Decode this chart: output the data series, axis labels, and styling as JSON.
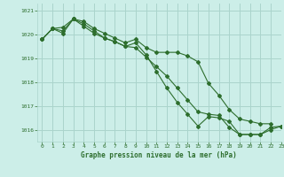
{
  "title": "Graphe pression niveau de la mer (hPa)",
  "background_color": "#cceee8",
  "grid_color": "#aad4cc",
  "line_color": "#2d6e2d",
  "xlim": [
    -0.5,
    23
  ],
  "ylim": [
    1015.5,
    1021.3
  ],
  "yticks": [
    1016,
    1017,
    1018,
    1019,
    1020,
    1021
  ],
  "xticks": [
    0,
    1,
    2,
    3,
    4,
    5,
    6,
    7,
    8,
    9,
    10,
    11,
    12,
    13,
    14,
    15,
    16,
    17,
    18,
    19,
    20,
    21,
    22,
    23
  ],
  "series": [
    [
      1019.8,
      1020.25,
      1020.3,
      1020.65,
      1020.55,
      1020.25,
      1020.05,
      1019.85,
      1019.65,
      1019.8,
      1019.45,
      1019.25,
      1019.25,
      1019.25,
      1019.1,
      1018.85,
      1017.95,
      1017.45,
      1016.85,
      1016.45,
      1016.35,
      1016.25,
      1016.25,
      null
    ],
    [
      1019.8,
      1020.25,
      1020.15,
      1020.65,
      1020.35,
      1020.05,
      1019.85,
      1019.7,
      1019.5,
      1019.65,
      1019.15,
      1018.45,
      1017.75,
      1017.15,
      1016.65,
      1016.15,
      1016.55,
      1016.5,
      1016.35,
      1015.8,
      1015.8,
      1015.8,
      1016.0,
      1016.15
    ],
    [
      1019.8,
      1020.25,
      1020.05,
      1020.65,
      1020.45,
      1020.15,
      1019.85,
      1019.7,
      1019.5,
      1019.45,
      1019.05,
      1018.65,
      1018.25,
      1017.75,
      1017.25,
      1016.75,
      1016.65,
      1016.6,
      1016.1,
      1015.8,
      1015.8,
      1015.8,
      1016.1,
      1016.15
    ]
  ]
}
